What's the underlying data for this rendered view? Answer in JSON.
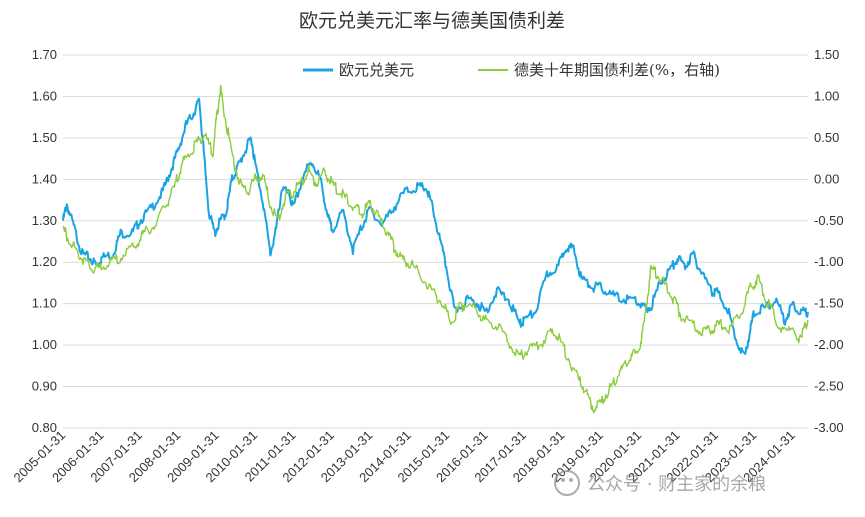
{
  "chart_data": {
    "type": "line",
    "title": "欧元兑美元汇率与德美国债利差",
    "legend_position": "top-right",
    "grid": true,
    "left_axis": {
      "ylim": [
        0.8,
        1.7
      ],
      "ticks": [
        "0.80",
        "0.90",
        "1.00",
        "1.10",
        "1.20",
        "1.30",
        "1.40",
        "1.50",
        "1.60",
        "1.70"
      ]
    },
    "right_axis": {
      "ylim": [
        -3.0,
        1.5
      ],
      "ticks": [
        "-3.00",
        "-2.50",
        "-2.00",
        "-1.50",
        "-1.00",
        "-0.50",
        "0.00",
        "0.50",
        "1.00",
        "1.50"
      ]
    },
    "x_ticks": [
      "2005-01-31",
      "2006-01-31",
      "2007-01-31",
      "2008-01-31",
      "2009-01-31",
      "2010-01-31",
      "2011-01-31",
      "2012-01-31",
      "2013-01-31",
      "2014-01-31",
      "2015-01-31",
      "2016-01-31",
      "2017-01-31",
      "2018-01-31",
      "2019-01-31",
      "2020-01-31",
      "2021-01-31",
      "2022-01-31",
      "2023-01-31",
      "2024-01-31"
    ],
    "xlim": [
      2005.0,
      2024.4
    ],
    "series": [
      {
        "name": "欧元兑美元",
        "axis": "left",
        "color": "#1aa3e3",
        "points": [
          [
            2005.0,
            1.3
          ],
          [
            2005.1,
            1.34
          ],
          [
            2005.3,
            1.28
          ],
          [
            2005.5,
            1.22
          ],
          [
            2005.7,
            1.21
          ],
          [
            2005.9,
            1.19
          ],
          [
            2006.0,
            1.21
          ],
          [
            2006.3,
            1.22
          ],
          [
            2006.5,
            1.27
          ],
          [
            2006.8,
            1.27
          ],
          [
            2007.0,
            1.3
          ],
          [
            2007.3,
            1.33
          ],
          [
            2007.6,
            1.37
          ],
          [
            2007.8,
            1.42
          ],
          [
            2008.0,
            1.47
          ],
          [
            2008.2,
            1.53
          ],
          [
            2008.4,
            1.56
          ],
          [
            2008.55,
            1.59
          ],
          [
            2008.65,
            1.48
          ],
          [
            2008.8,
            1.32
          ],
          [
            2008.95,
            1.27
          ],
          [
            2009.1,
            1.3
          ],
          [
            2009.25,
            1.32
          ],
          [
            2009.4,
            1.4
          ],
          [
            2009.55,
            1.43
          ],
          [
            2009.75,
            1.47
          ],
          [
            2009.9,
            1.5
          ],
          [
            2010.0,
            1.44
          ],
          [
            2010.2,
            1.35
          ],
          [
            2010.4,
            1.22
          ],
          [
            2010.55,
            1.28
          ],
          [
            2010.7,
            1.38
          ],
          [
            2010.9,
            1.36
          ],
          [
            2011.0,
            1.33
          ],
          [
            2011.3,
            1.42
          ],
          [
            2011.5,
            1.44
          ],
          [
            2011.7,
            1.4
          ],
          [
            2011.9,
            1.31
          ],
          [
            2012.0,
            1.28
          ],
          [
            2012.3,
            1.32
          ],
          [
            2012.55,
            1.23
          ],
          [
            2012.8,
            1.29
          ],
          [
            2013.0,
            1.33
          ],
          [
            2013.3,
            1.29
          ],
          [
            2013.6,
            1.33
          ],
          [
            2013.9,
            1.37
          ],
          [
            2014.2,
            1.38
          ],
          [
            2014.45,
            1.38
          ],
          [
            2014.6,
            1.34
          ],
          [
            2014.8,
            1.26
          ],
          [
            2015.0,
            1.18
          ],
          [
            2015.2,
            1.08
          ],
          [
            2015.5,
            1.11
          ],
          [
            2015.8,
            1.1
          ],
          [
            2016.0,
            1.08
          ],
          [
            2016.3,
            1.13
          ],
          [
            2016.6,
            1.11
          ],
          [
            2016.9,
            1.05
          ],
          [
            2017.0,
            1.06
          ],
          [
            2017.3,
            1.08
          ],
          [
            2017.6,
            1.17
          ],
          [
            2017.9,
            1.19
          ],
          [
            2018.1,
            1.24
          ],
          [
            2018.3,
            1.23
          ],
          [
            2018.5,
            1.16
          ],
          [
            2018.8,
            1.14
          ],
          [
            2019.0,
            1.14
          ],
          [
            2019.3,
            1.12
          ],
          [
            2019.6,
            1.11
          ],
          [
            2019.9,
            1.11
          ],
          [
            2020.1,
            1.09
          ],
          [
            2020.3,
            1.09
          ],
          [
            2020.55,
            1.15
          ],
          [
            2020.8,
            1.18
          ],
          [
            2021.0,
            1.21
          ],
          [
            2021.2,
            1.19
          ],
          [
            2021.4,
            1.22
          ],
          [
            2021.6,
            1.18
          ],
          [
            2021.9,
            1.13
          ],
          [
            2022.0,
            1.13
          ],
          [
            2022.3,
            1.09
          ],
          [
            2022.5,
            1.02
          ],
          [
            2022.75,
            0.97
          ],
          [
            2022.9,
            1.04
          ],
          [
            2023.0,
            1.08
          ],
          [
            2023.3,
            1.09
          ],
          [
            2023.55,
            1.11
          ],
          [
            2023.8,
            1.06
          ],
          [
            2024.0,
            1.1
          ],
          [
            2024.2,
            1.08
          ],
          [
            2024.4,
            1.08
          ]
        ]
      },
      {
        "name": "德美十年期国债利差(%，右轴)",
        "axis": "right",
        "color": "#8ccc3b",
        "points": [
          [
            2005.0,
            -0.6
          ],
          [
            2005.2,
            -0.75
          ],
          [
            2005.4,
            -0.9
          ],
          [
            2005.6,
            -1.0
          ],
          [
            2005.8,
            -1.1
          ],
          [
            2006.0,
            -1.05
          ],
          [
            2006.3,
            -1.0
          ],
          [
            2006.6,
            -0.9
          ],
          [
            2006.9,
            -0.8
          ],
          [
            2007.1,
            -0.65
          ],
          [
            2007.4,
            -0.55
          ],
          [
            2007.7,
            -0.3
          ],
          [
            2007.9,
            -0.1
          ],
          [
            2008.1,
            0.2
          ],
          [
            2008.3,
            0.3
          ],
          [
            2008.5,
            0.45
          ],
          [
            2008.7,
            0.55
          ],
          [
            2008.9,
            0.3
          ],
          [
            2009.0,
            0.75
          ],
          [
            2009.1,
            1.1
          ],
          [
            2009.2,
            0.8
          ],
          [
            2009.4,
            0.3
          ],
          [
            2009.6,
            -0.05
          ],
          [
            2009.8,
            -0.15
          ],
          [
            2010.0,
            0.0
          ],
          [
            2010.2,
            0.05
          ],
          [
            2010.4,
            -0.3
          ],
          [
            2010.6,
            -0.5
          ],
          [
            2010.8,
            -0.2
          ],
          [
            2011.0,
            -0.15
          ],
          [
            2011.2,
            -0.05
          ],
          [
            2011.4,
            0.1
          ],
          [
            2011.6,
            -0.05
          ],
          [
            2011.8,
            0.1
          ],
          [
            2012.0,
            -0.05
          ],
          [
            2012.2,
            -0.15
          ],
          [
            2012.4,
            -0.25
          ],
          [
            2012.6,
            -0.35
          ],
          [
            2012.8,
            -0.4
          ],
          [
            2013.0,
            -0.3
          ],
          [
            2013.2,
            -0.45
          ],
          [
            2013.4,
            -0.6
          ],
          [
            2013.6,
            -0.8
          ],
          [
            2013.8,
            -0.95
          ],
          [
            2014.0,
            -1.0
          ],
          [
            2014.3,
            -1.15
          ],
          [
            2014.6,
            -1.35
          ],
          [
            2014.9,
            -1.5
          ],
          [
            2015.1,
            -1.75
          ],
          [
            2015.3,
            -1.55
          ],
          [
            2015.5,
            -1.5
          ],
          [
            2015.8,
            -1.6
          ],
          [
            2016.0,
            -1.7
          ],
          [
            2016.3,
            -1.75
          ],
          [
            2016.6,
            -1.95
          ],
          [
            2016.9,
            -2.15
          ],
          [
            2017.1,
            -2.05
          ],
          [
            2017.4,
            -2.0
          ],
          [
            2017.7,
            -1.85
          ],
          [
            2017.9,
            -1.9
          ],
          [
            2018.1,
            -2.1
          ],
          [
            2018.4,
            -2.4
          ],
          [
            2018.6,
            -2.55
          ],
          [
            2018.8,
            -2.75
          ],
          [
            2019.0,
            -2.7
          ],
          [
            2019.2,
            -2.55
          ],
          [
            2019.4,
            -2.4
          ],
          [
            2019.6,
            -2.25
          ],
          [
            2019.8,
            -2.15
          ],
          [
            2020.0,
            -2.05
          ],
          [
            2020.15,
            -1.7
          ],
          [
            2020.3,
            -1.1
          ],
          [
            2020.5,
            -1.15
          ],
          [
            2020.7,
            -1.3
          ],
          [
            2020.9,
            -1.45
          ],
          [
            2021.1,
            -1.65
          ],
          [
            2021.4,
            -1.75
          ],
          [
            2021.7,
            -1.85
          ],
          [
            2021.9,
            -1.8
          ],
          [
            2022.1,
            -1.75
          ],
          [
            2022.4,
            -1.8
          ],
          [
            2022.7,
            -1.55
          ],
          [
            2022.9,
            -1.3
          ],
          [
            2023.1,
            -1.2
          ],
          [
            2023.3,
            -1.45
          ],
          [
            2023.5,
            -1.6
          ],
          [
            2023.7,
            -1.85
          ],
          [
            2023.9,
            -1.75
          ],
          [
            2024.1,
            -1.95
          ],
          [
            2024.3,
            -1.8
          ],
          [
            2024.4,
            -1.7
          ]
        ]
      }
    ]
  },
  "watermark": {
    "text": "公众号 · 财主家的余粮"
  }
}
